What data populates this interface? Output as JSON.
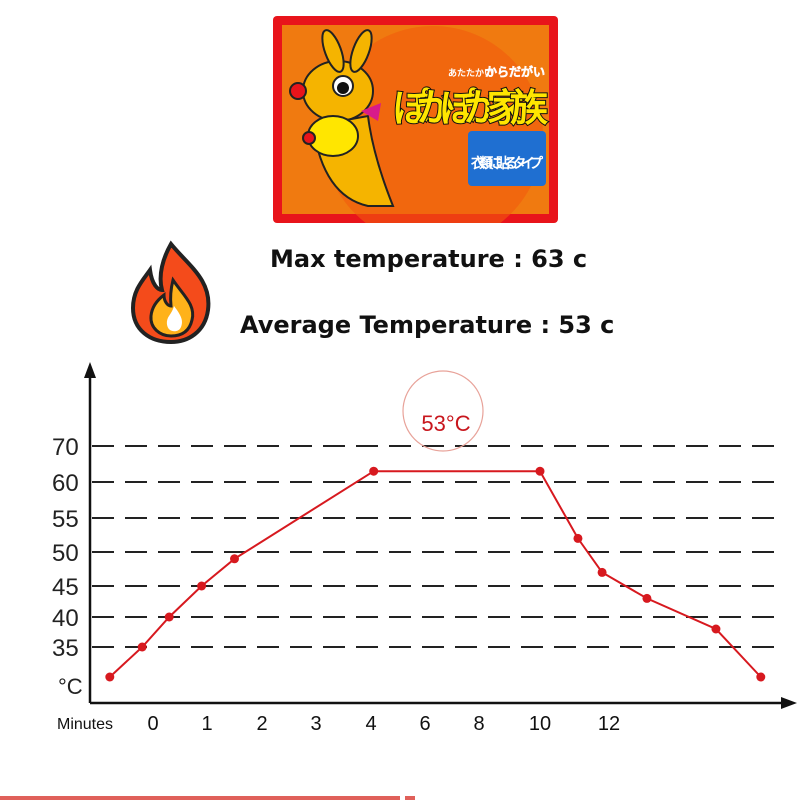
{
  "product": {
    "name": "ぽかぽか家族",
    "tagline_small": "あたたかい",
    "tagline": "からだがい",
    "badge": "衣類に貼るタイプ",
    "colors": {
      "border": "#e8141b",
      "background": "#f07a10",
      "accent": "#ffe600",
      "badge": "#1f6fd1"
    }
  },
  "headline": {
    "max_temperature": "Max temperature :  63 c",
    "average_temperature": "Average Temperature : 53 c",
    "icon": "fire-icon"
  },
  "chart_data": {
    "type": "line",
    "title": "",
    "xlabel": "Minutes",
    "ylabel": "°C",
    "annotation": "53°C",
    "x_ticks": [
      "0",
      "1",
      "2",
      "3",
      "4",
      "6",
      "8",
      "10",
      "12"
    ],
    "y_ticks": [
      70,
      60,
      55,
      50,
      45,
      40,
      35
    ],
    "grid": "horizontal dashed",
    "line_color": "#d7191f",
    "series": [
      {
        "x": [
          -0.8,
          -0.2,
          0.3,
          0.9,
          1.5,
          4.1,
          10,
          11.1,
          11.8,
          13.1,
          15.1,
          16.4
        ],
        "y": [
          30,
          35,
          40,
          45,
          49,
          63,
          63,
          52,
          47,
          43,
          38,
          30
        ]
      }
    ]
  }
}
